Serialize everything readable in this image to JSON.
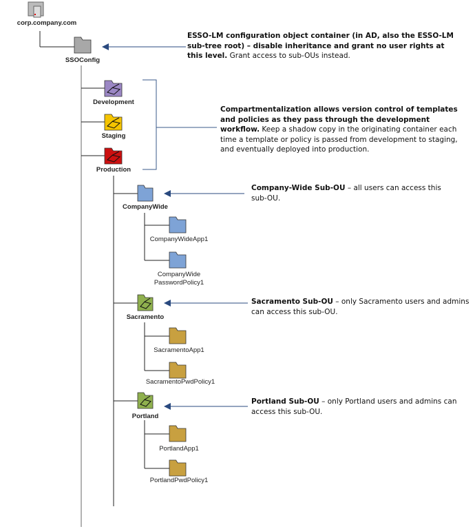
{
  "colors": {
    "line": "#222222",
    "arrow": "#2a4a7f",
    "bracket": "#3a5a8a",
    "trunk": "#999999"
  },
  "root": {
    "label": "corp.company.com",
    "icon": "server-icon"
  },
  "ssoconfig": {
    "label": "SSOConfig",
    "color": "#a8a8a8"
  },
  "stages": [
    {
      "label": "Development",
      "color": "#9b87c4"
    },
    {
      "label": "Staging",
      "color": "#f5c400"
    },
    {
      "label": "Production",
      "color": "#cc1010"
    }
  ],
  "subous": [
    {
      "label": "CompanyWide",
      "color": "#7ea3d6",
      "children": [
        {
          "label": "CompanyWideApp1"
        },
        {
          "label": "CompanyWide\nPasswordPolicy1",
          "line1": "CompanyWide",
          "line2": "PasswordPolicy1"
        }
      ],
      "child_color": "#7ea3d6"
    },
    {
      "label": "Sacramento",
      "color": "#8fb04e",
      "children": [
        {
          "label": "SacramentoApp1"
        },
        {
          "label": "SacramentoPwdPolicy1"
        }
      ],
      "child_color": "#c8a040"
    },
    {
      "label": "Portland",
      "color": "#8fb04e",
      "children": [
        {
          "label": "PortlandApp1"
        },
        {
          "label": "PortlandPwdPolicy1"
        }
      ],
      "child_color": "#c8a040"
    }
  ],
  "notes": {
    "ssoconfig": {
      "bold": "ESSO-LM configuration object container (in AD, also the ESSO-LM sub-tree root) – disable inheritance and grant no user rights at this level.",
      "text": " Grant access to sub-OUs instead."
    },
    "compartment": {
      "bold": "Compartmentalization allows version control of templates and policies as they pass through the development workflow.",
      "text": " Keep a shadow copy in the originating container each time a template or policy is passed from development to staging, and eventually deployed into production."
    },
    "companywide": {
      "bold": "Company-Wide Sub-OU",
      "text": " – all users can access this sub-OU."
    },
    "sacramento": {
      "bold": "Sacramento Sub-OU",
      "text": " – only Sacramento users and admins can access this sub-OU."
    },
    "portland": {
      "bold": "Portland Sub-OU",
      "text": " – only Portland users and admins can access this sub-OU."
    }
  }
}
